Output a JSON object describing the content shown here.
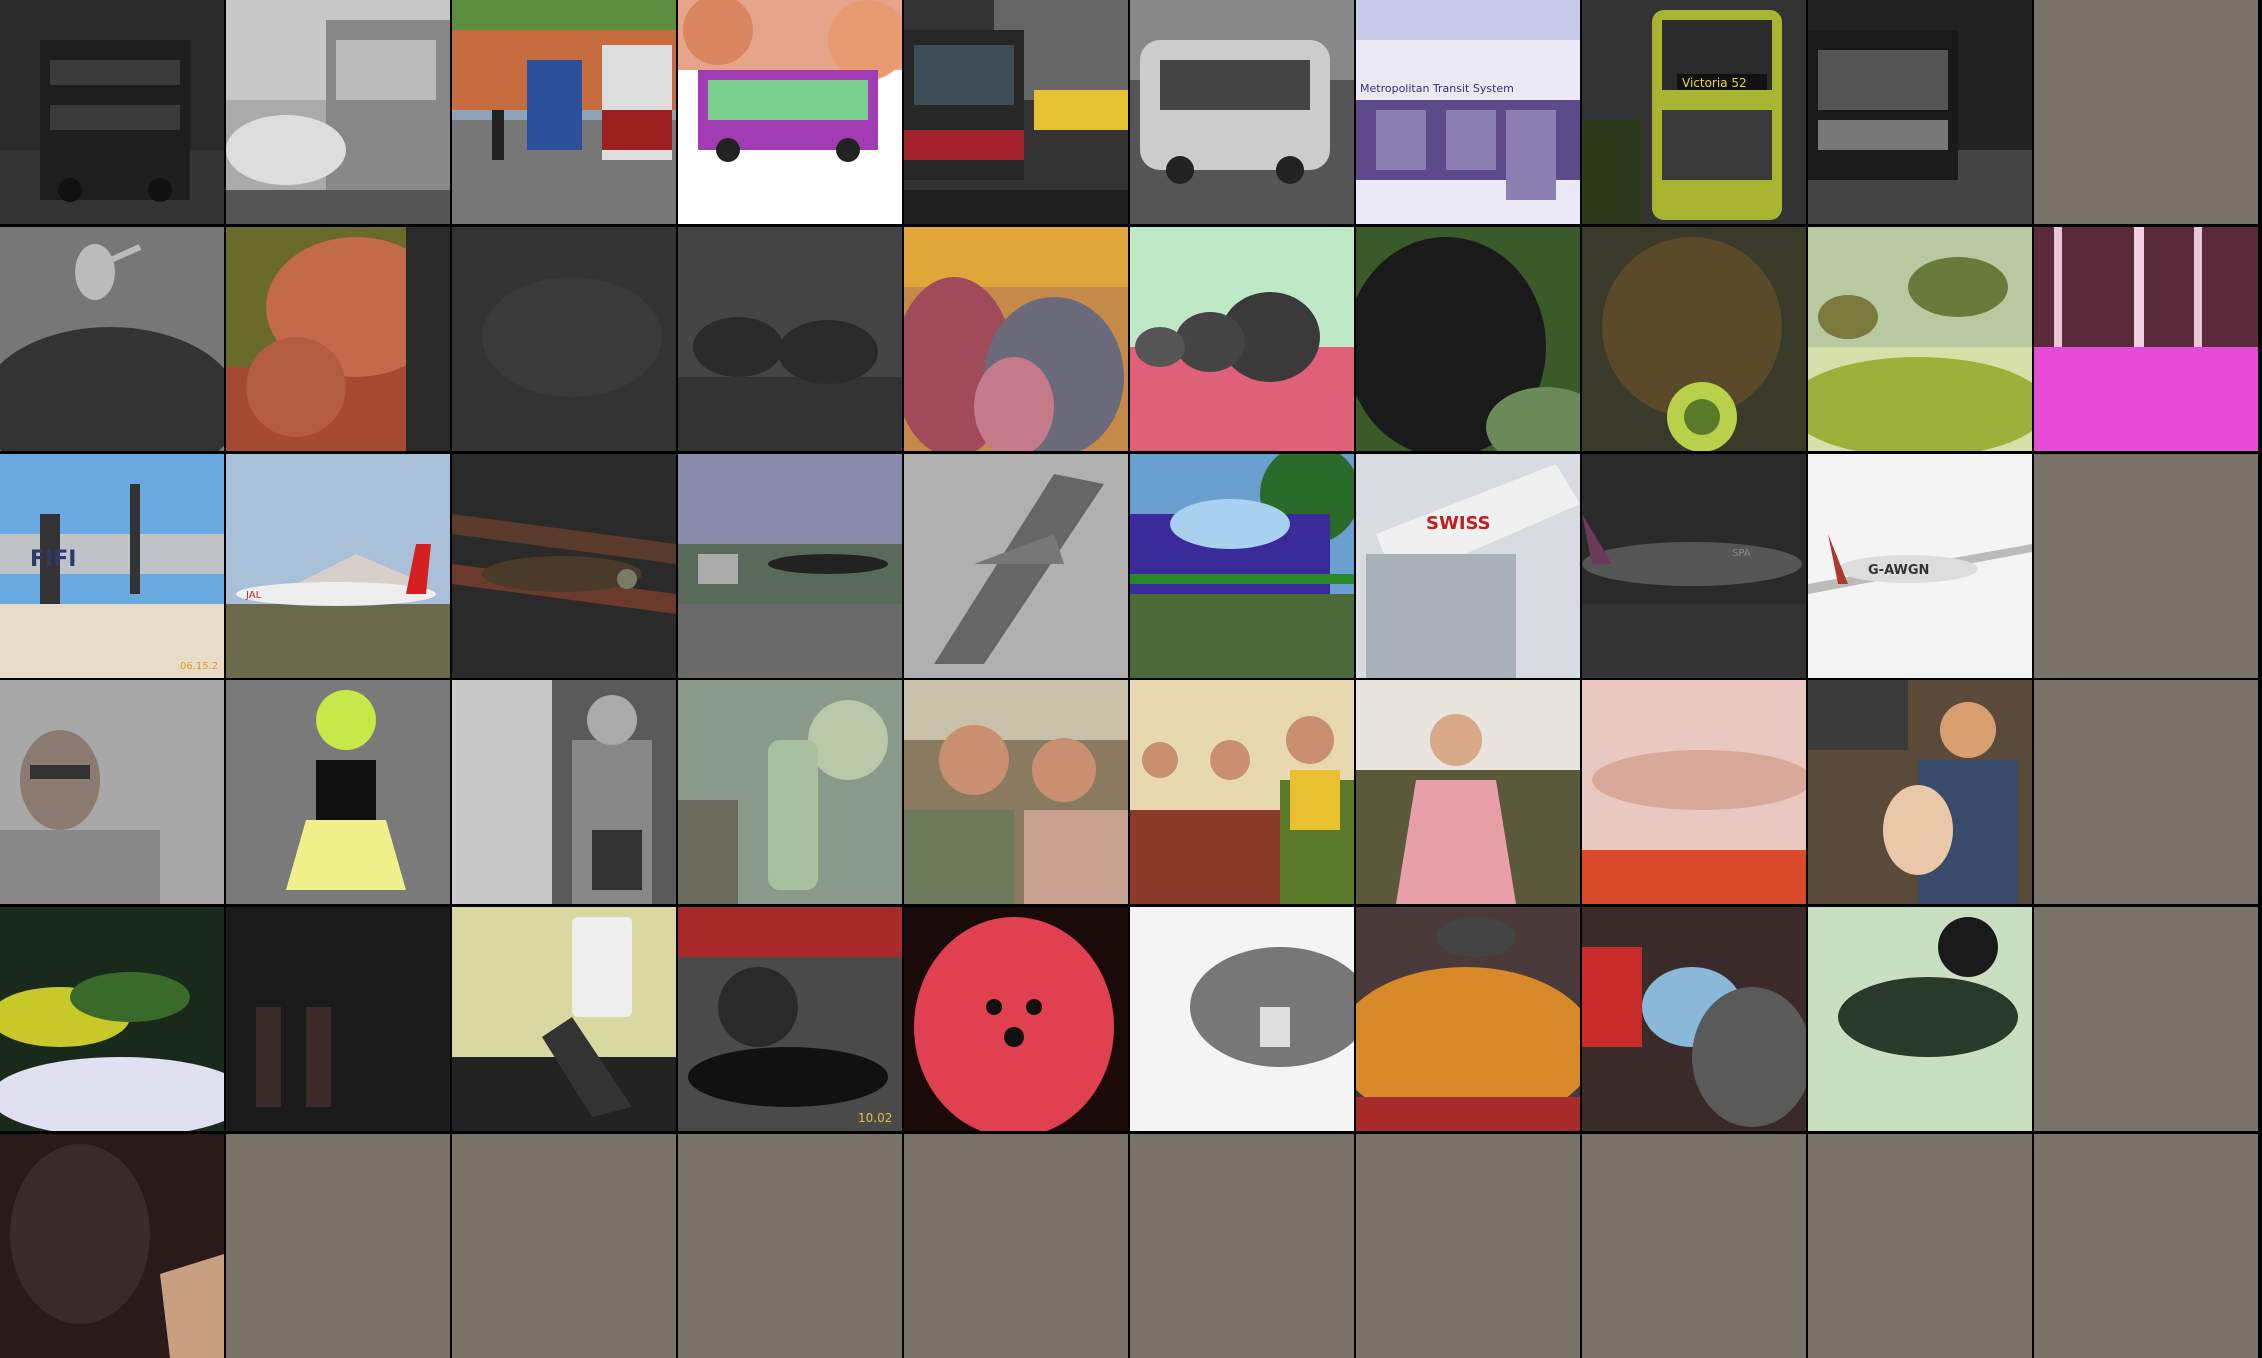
{
  "colors": {
    "empty_tile": "#777168",
    "gridline": "#000000"
  },
  "rows": [
    {
      "theme": "buses",
      "tiles": [
        {
          "subject": "double-decker bus",
          "filter": "dark"
        },
        {
          "subject": "bus and car",
          "filter": "grayscale"
        },
        {
          "subject": "buses on street",
          "filter": "none"
        },
        {
          "subject": "purple articulated bus",
          "filter": "bright"
        },
        {
          "subject": "bus and taxi",
          "filter": "dark"
        },
        {
          "subject": "white bus",
          "filter": "grayscale"
        },
        {
          "subject": "transit bus",
          "filter": "purple-tint",
          "text": "Metropolitan Transit System"
        },
        {
          "subject": "green double-decker bus",
          "filter": "dark-green",
          "text": "Victoria  52"
        },
        {
          "subject": "bus at night",
          "filter": "grayscale"
        },
        {
          "subject": "empty",
          "filter": "none"
        }
      ]
    },
    {
      "theme": "elephants and animals",
      "tiles": [
        {
          "subject": "bird on buffalo",
          "filter": "grayscale"
        },
        {
          "subject": "elephants",
          "filter": "orange"
        },
        {
          "subject": "elephant",
          "filter": "very-dark"
        },
        {
          "subject": "elephant herd",
          "filter": "dark"
        },
        {
          "subject": "elephants close-up",
          "filter": "warm"
        },
        {
          "subject": "elephant herd in field",
          "filter": "pink-green"
        },
        {
          "subject": "cat close-up",
          "filter": "green"
        },
        {
          "subject": "dog with ball",
          "filter": "dark"
        },
        {
          "subject": "elephants in river",
          "filter": "yellow-green"
        },
        {
          "subject": "forest",
          "filter": "magenta"
        }
      ]
    },
    {
      "theme": "airplanes",
      "tiles": [
        {
          "subject": "vintage bomber",
          "filter": "none",
          "text": "FIFI",
          "date": "06.15.2"
        },
        {
          "subject": "jet at airport",
          "filter": "none",
          "text": "JAL"
        },
        {
          "subject": "biplane",
          "filter": "dark"
        },
        {
          "subject": "small plane on grass",
          "filter": "muted"
        },
        {
          "subject": "fighter jet",
          "filter": "blur"
        },
        {
          "subject": "jet trainer",
          "filter": "blue-tint"
        },
        {
          "subject": "airliner tail",
          "filter": "washed",
          "text": "SWISS"
        },
        {
          "subject": "airliner",
          "filter": "dark",
          "text": "SPA"
        },
        {
          "subject": "light aircraft",
          "filter": "bright",
          "text": "G-AWGN"
        },
        {
          "subject": "empty",
          "filter": "none"
        }
      ]
    },
    {
      "theme": "people",
      "tiles": [
        {
          "subject": "man with glasses",
          "filter": "washed"
        },
        {
          "subject": "girl in dress",
          "filter": "yellow-green"
        },
        {
          "subject": "child and adult",
          "filter": "grayscale"
        },
        {
          "subject": "toys",
          "filter": "washed"
        },
        {
          "subject": "couple",
          "filter": "none"
        },
        {
          "subject": "children at party",
          "filter": "none"
        },
        {
          "subject": "girl on couch",
          "filter": "none"
        },
        {
          "subject": "hand",
          "filter": "washed"
        },
        {
          "subject": "mother and baby",
          "filter": "warm"
        },
        {
          "subject": "empty",
          "filter": "none"
        }
      ]
    },
    {
      "theme": "pets and objects",
      "tiles": [
        {
          "subject": "bed with blanket",
          "filter": "green"
        },
        {
          "subject": "legs",
          "filter": "very-dark"
        },
        {
          "subject": "desk with keyboard and ipod",
          "filter": "yellow"
        },
        {
          "subject": "cat with shoe",
          "filter": "none",
          "date": "10.02"
        },
        {
          "subject": "small dog",
          "filter": "red"
        },
        {
          "subject": "hand",
          "filter": "bright-grayscale"
        },
        {
          "subject": "mouse on orange",
          "filter": "warm"
        },
        {
          "subject": "bags",
          "filter": "none"
        },
        {
          "subject": "cat on blanket",
          "filter": "green"
        },
        {
          "subject": "empty",
          "filter": "none"
        }
      ]
    },
    {
      "theme": "misc",
      "tiles": [
        {
          "subject": "dark indoor scene",
          "filter": "dark"
        },
        {
          "subject": "empty",
          "filter": "none"
        },
        {
          "subject": "empty",
          "filter": "none"
        },
        {
          "subject": "empty",
          "filter": "none"
        },
        {
          "subject": "empty",
          "filter": "none"
        },
        {
          "subject": "empty",
          "filter": "none"
        },
        {
          "subject": "empty",
          "filter": "none"
        },
        {
          "subject": "empty",
          "filter": "none"
        },
        {
          "subject": "empty",
          "filter": "none"
        },
        {
          "subject": "empty",
          "filter": "none"
        }
      ]
    }
  ]
}
